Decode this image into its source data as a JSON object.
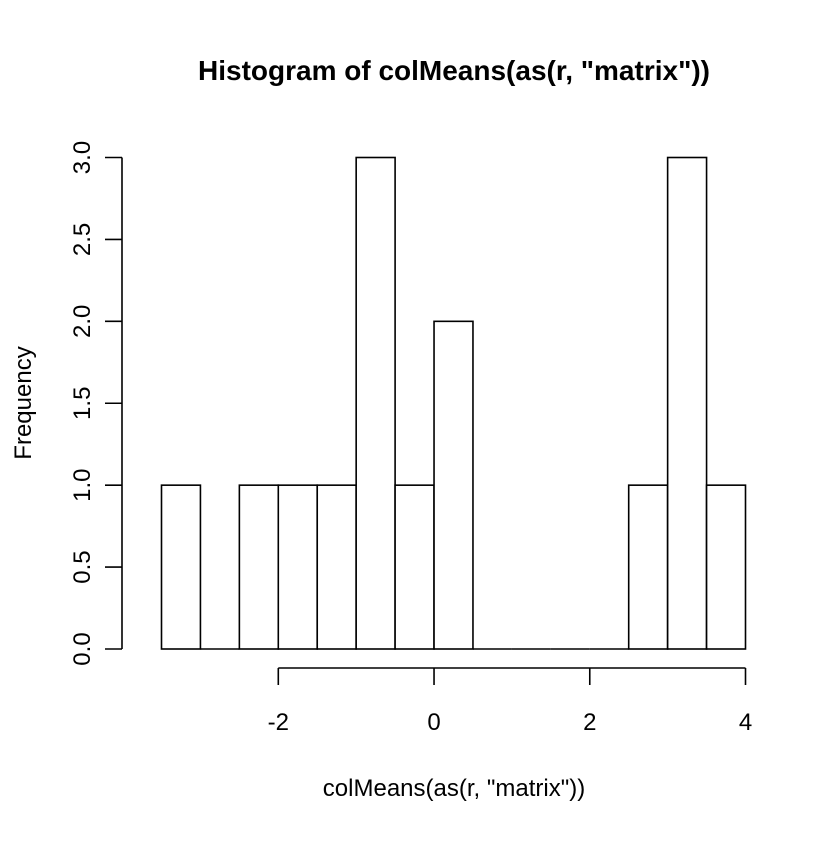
{
  "chart_data": {
    "type": "bar",
    "title": "Histogram of colMeans(as(r, \"matrix\"))",
    "xlabel": "colMeans(as(r, \"matrix\"))",
    "ylabel": "Frequency",
    "bin_width": 0.5,
    "bins": [
      {
        "x0": -3.5,
        "x1": -3.0,
        "count": 1
      },
      {
        "x0": -3.0,
        "x1": -2.5,
        "count": 0
      },
      {
        "x0": -2.5,
        "x1": -2.0,
        "count": 1
      },
      {
        "x0": -2.0,
        "x1": -1.5,
        "count": 1
      },
      {
        "x0": -1.5,
        "x1": -1.0,
        "count": 1
      },
      {
        "x0": -1.0,
        "x1": -0.5,
        "count": 3
      },
      {
        "x0": -0.5,
        "x1": 0.0,
        "count": 1
      },
      {
        "x0": 0.0,
        "x1": 0.5,
        "count": 2
      },
      {
        "x0": 0.5,
        "x1": 1.0,
        "count": 0
      },
      {
        "x0": 1.0,
        "x1": 1.5,
        "count": 0
      },
      {
        "x0": 1.5,
        "x1": 2.0,
        "count": 0
      },
      {
        "x0": 2.0,
        "x1": 2.5,
        "count": 0
      },
      {
        "x0": 2.5,
        "x1": 3.0,
        "count": 1
      },
      {
        "x0": 3.0,
        "x1": 3.5,
        "count": 3
      },
      {
        "x0": 3.5,
        "x1": 4.0,
        "count": 1
      }
    ],
    "xlim": [
      -3.5,
      4.0
    ],
    "ylim": [
      0,
      3.0
    ],
    "x_ticks": [
      -2,
      0,
      2,
      4
    ],
    "x_tick_labels": [
      "-2",
      "0",
      "2",
      "4"
    ],
    "y_ticks": [
      0,
      0.5,
      1.0,
      1.5,
      2.0,
      2.5,
      3.0
    ],
    "y_tick_labels": [
      "0.0",
      "0.5",
      "1.0",
      "1.5",
      "2.0",
      "2.5",
      "3.0"
    ],
    "x_axis_range": [
      -2,
      4
    ],
    "grid": false,
    "legend": "none",
    "bar_fill": "#ffffff",
    "bar_stroke": "#000000"
  }
}
